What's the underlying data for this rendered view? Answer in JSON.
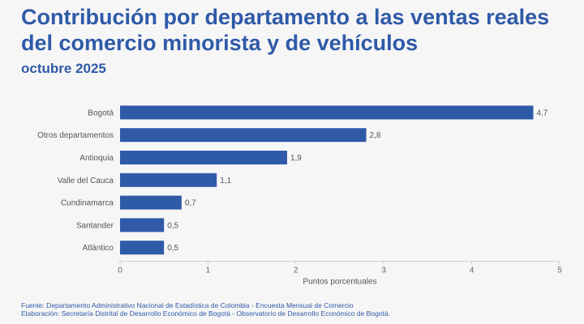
{
  "title": "Contribución por departamento a las ventas reales del comercio minorista y de vehículos",
  "subtitle": "octubre 2025",
  "footer": {
    "source": "Fuente: Departamento Administrativo Nacional de Estadística de Colombia - Encuesta Mensual de Comercio",
    "elaboration": "Elaboración: Secretaría Distrital de Desarrollo Económico de Bogotá - Observatorio de Desarrollo Económico de Bogotá."
  },
  "colors": {
    "bar": "#2f5aa8",
    "title": "#2f5aa8",
    "axis": "#cccccc"
  },
  "chart_data": {
    "type": "bar",
    "orientation": "horizontal",
    "categories": [
      "Bogotá",
      "Otros departamentos",
      "Antioquia",
      "Valle del Cauca",
      "Cundinamarca",
      "Santander",
      "Atlántico"
    ],
    "values": [
      4.7,
      2.8,
      1.9,
      1.1,
      0.7,
      0.5,
      0.5
    ],
    "value_labels": [
      "4,7",
      "2,8",
      "1,9",
      "1,1",
      "0,7",
      "0,5",
      "0,5"
    ],
    "xlabel": "Puntos porcentuales",
    "ylabel": "",
    "xlim": [
      0,
      5
    ],
    "xticks": [
      0,
      1,
      2,
      3,
      4,
      5
    ],
    "grid": false,
    "legend": "none"
  }
}
